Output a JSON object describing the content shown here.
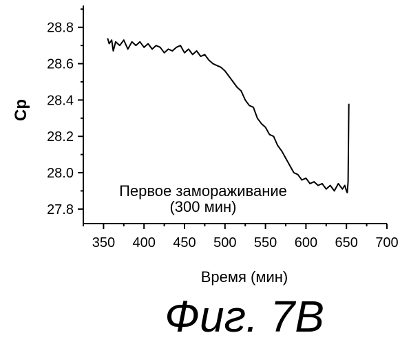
{
  "chart_data": {
    "type": "line",
    "xlabel": "Время (мин)",
    "ylabel": "Cp",
    "xlim": [
      325,
      700
    ],
    "ylim": [
      27.72,
      28.92
    ],
    "x_ticks": [
      "350",
      "400",
      "450",
      "500",
      "550",
      "600",
      "650",
      "700"
    ],
    "y_ticks": [
      "27.8",
      "28.0",
      "28.2",
      "28.4",
      "28.6",
      "28.8"
    ],
    "annotation": [
      "Первое замораживание",
      "(300 мин)"
    ],
    "series": [
      {
        "color": "#000000",
        "x": [
          355,
          357,
          360,
          362,
          365,
          370,
          375,
          380,
          385,
          390,
          395,
          400,
          405,
          410,
          415,
          420,
          425,
          430,
          435,
          440,
          445,
          450,
          455,
          460,
          465,
          470,
          475,
          480,
          485,
          490,
          495,
          500,
          505,
          510,
          515,
          520,
          525,
          530,
          535,
          540,
          545,
          550,
          555,
          560,
          565,
          570,
          575,
          580,
          585,
          590,
          595,
          600,
          605,
          610,
          615,
          620,
          625,
          630,
          635,
          640,
          645,
          648,
          650,
          651,
          652,
          653
        ],
        "y": [
          28.74,
          28.71,
          28.73,
          28.67,
          28.72,
          28.7,
          28.73,
          28.68,
          28.72,
          28.7,
          28.72,
          28.69,
          28.71,
          28.68,
          28.7,
          28.69,
          28.66,
          28.68,
          28.67,
          28.69,
          28.7,
          28.66,
          28.68,
          28.65,
          28.67,
          28.64,
          28.65,
          28.62,
          28.6,
          28.59,
          28.58,
          28.56,
          28.53,
          28.5,
          28.47,
          28.45,
          28.4,
          28.37,
          28.36,
          28.3,
          28.27,
          28.25,
          28.21,
          28.2,
          28.15,
          28.12,
          28.08,
          28.04,
          28.0,
          27.99,
          27.96,
          27.97,
          27.94,
          27.95,
          27.93,
          27.94,
          27.91,
          27.93,
          27.9,
          27.94,
          27.91,
          27.93,
          27.9,
          27.89,
          27.95,
          28.38
        ]
      }
    ]
  },
  "figure_caption": "Фиг. 7B"
}
